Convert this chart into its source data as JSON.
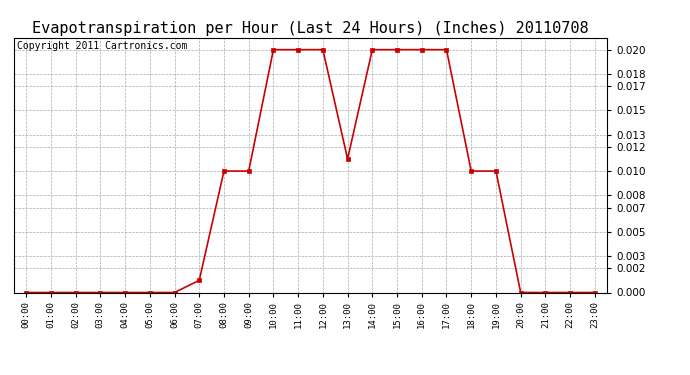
{
  "title": "Evapotranspiration per Hour (Last 24 Hours) (Inches) 20110708",
  "copyright_text": "Copyright 2011 Cartronics.com",
  "hours": [
    0,
    1,
    2,
    3,
    4,
    5,
    6,
    7,
    8,
    9,
    10,
    11,
    12,
    13,
    14,
    15,
    16,
    17,
    18,
    19,
    20,
    21,
    22,
    23
  ],
  "values": [
    0.0,
    0.0,
    0.0,
    0.0,
    0.0,
    0.0,
    0.0,
    0.001,
    0.01,
    0.01,
    0.02,
    0.02,
    0.02,
    0.011,
    0.02,
    0.02,
    0.02,
    0.02,
    0.01,
    0.01,
    0.0,
    0.0,
    0.0,
    0.0
  ],
  "line_color": "#cc0000",
  "marker_color": "#cc0000",
  "background_color": "#ffffff",
  "plot_background": "#ffffff",
  "grid_color": "#aaaaaa",
  "ylim": [
    0.0,
    0.021
  ],
  "yticks": [
    0.0,
    0.002,
    0.003,
    0.005,
    0.007,
    0.008,
    0.01,
    0.012,
    0.013,
    0.015,
    0.017,
    0.018,
    0.02
  ],
  "title_fontsize": 11,
  "copyright_fontsize": 7,
  "tick_fontsize": 7.5,
  "xtick_fontsize": 6.5
}
